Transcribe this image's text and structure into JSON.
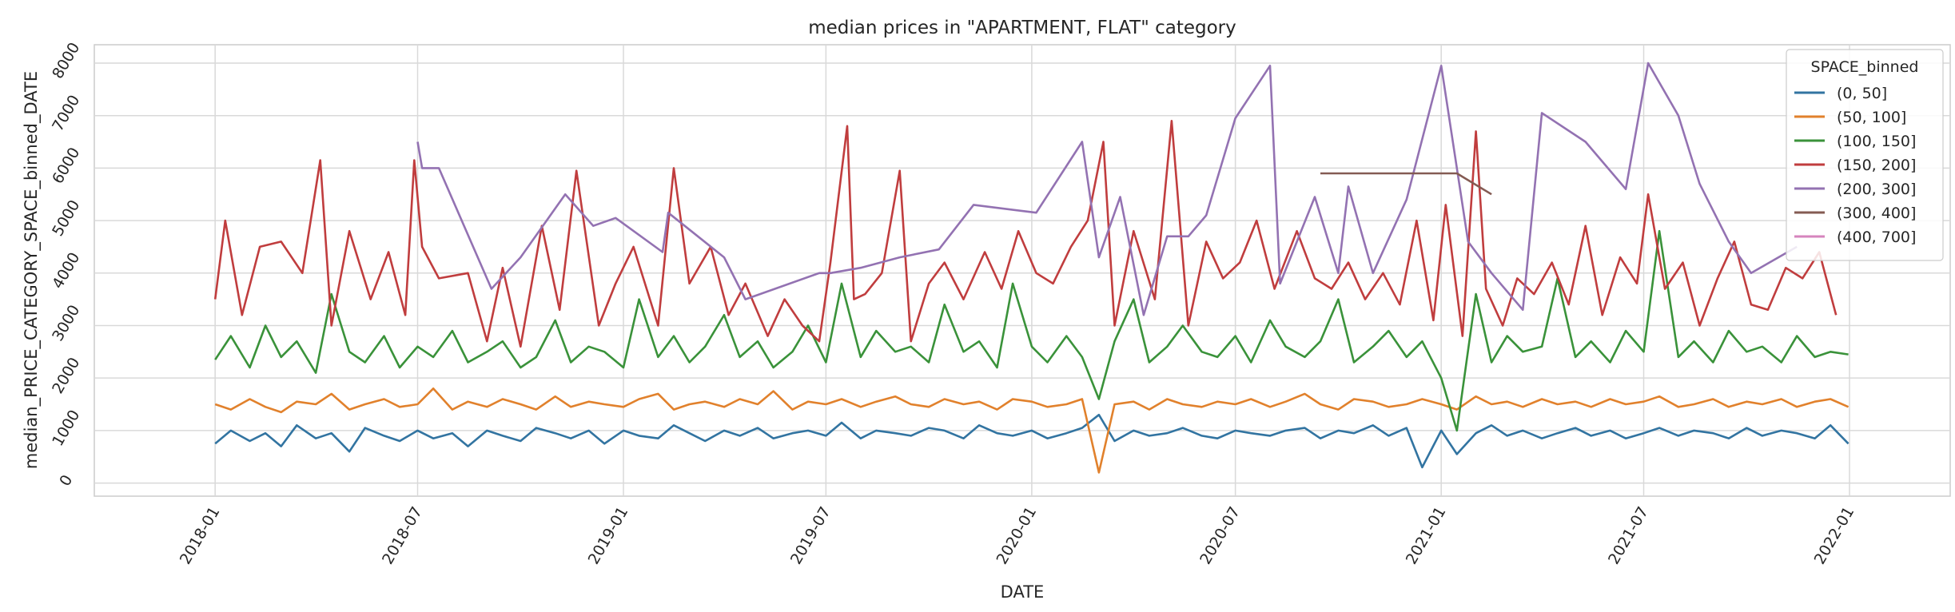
{
  "chart_data": {
    "type": "line",
    "title": "median prices in \"APARTMENT, FLAT\" category",
    "xlabel": "DATE",
    "ylabel": "median_PRICE_CATEGORY_SPACE_binned_DATE",
    "x_ticks": [
      "2018-01",
      "2018-07",
      "2019-01",
      "2019-07",
      "2020-01",
      "2020-07",
      "2021-01",
      "2021-07",
      "2022-01"
    ],
    "y_ticks": [
      "0",
      "1000",
      "2000",
      "3000",
      "4000",
      "5000",
      "6000",
      "7000",
      "8000"
    ],
    "xlim": [
      "2017-09-15",
      "2022-04-01"
    ],
    "ylim": [
      -250,
      8350
    ],
    "grid": true,
    "legend": {
      "title": "SPACE_binned",
      "placement": "top-right",
      "entries": [
        "(0, 50]",
        "(50, 100]",
        "(100, 150]",
        "(150, 200]",
        "(200, 300]",
        "(300, 400]",
        "(400, 700]"
      ]
    },
    "series": [
      {
        "name": "(0, 50]",
        "color": "#3274a1",
        "x": [
          "2018-01-01",
          "2018-01-15",
          "2018-02-01",
          "2018-02-15",
          "2018-03-01",
          "2018-03-15",
          "2018-04-01",
          "2018-04-15",
          "2018-05-01",
          "2018-05-15",
          "2018-06-01",
          "2018-06-15",
          "2018-07-01",
          "2018-07-15",
          "2018-08-01",
          "2018-08-15",
          "2018-09-01",
          "2018-09-15",
          "2018-10-01",
          "2018-10-15",
          "2018-11-01",
          "2018-11-15",
          "2018-12-01",
          "2018-12-15",
          "2019-01-01",
          "2019-01-15",
          "2019-02-01",
          "2019-02-15",
          "2019-03-01",
          "2019-03-15",
          "2019-04-01",
          "2019-04-15",
          "2019-05-01",
          "2019-05-15",
          "2019-06-01",
          "2019-06-15",
          "2019-07-01",
          "2019-07-15",
          "2019-08-01",
          "2019-08-15",
          "2019-09-01",
          "2019-09-15",
          "2019-10-01",
          "2019-10-15",
          "2019-11-01",
          "2019-11-15",
          "2019-12-01",
          "2019-12-15",
          "2020-01-01",
          "2020-01-15",
          "2020-02-01",
          "2020-02-15",
          "2020-03-01",
          "2020-03-15",
          "2020-04-01",
          "2020-04-15",
          "2020-05-01",
          "2020-05-15",
          "2020-06-01",
          "2020-06-15",
          "2020-07-01",
          "2020-07-15",
          "2020-08-01",
          "2020-08-15",
          "2020-09-01",
          "2020-09-15",
          "2020-10-01",
          "2020-10-15",
          "2020-11-01",
          "2020-11-15",
          "2020-12-01",
          "2020-12-15",
          "2021-01-01",
          "2021-01-15",
          "2021-02-01",
          "2021-02-15",
          "2021-03-01",
          "2021-03-15",
          "2021-04-01",
          "2021-04-15",
          "2021-05-01",
          "2021-05-15",
          "2021-06-01",
          "2021-06-15",
          "2021-07-01",
          "2021-07-15",
          "2021-08-01",
          "2021-08-15",
          "2021-09-01",
          "2021-09-15",
          "2021-10-01",
          "2021-10-15",
          "2021-11-01",
          "2021-11-15",
          "2021-12-01",
          "2021-12-15",
          "2021-12-31"
        ],
        "y": [
          750,
          1000,
          800,
          950,
          700,
          1100,
          850,
          950,
          600,
          1050,
          900,
          800,
          1000,
          850,
          950,
          700,
          1000,
          900,
          800,
          1050,
          950,
          850,
          1000,
          750,
          1000,
          900,
          850,
          1100,
          950,
          800,
          1000,
          900,
          1050,
          850,
          950,
          1000,
          900,
          1150,
          850,
          1000,
          950,
          900,
          1050,
          1000,
          850,
          1100,
          950,
          900,
          1000,
          850,
          950,
          1050,
          1300,
          800,
          1000,
          900,
          950,
          1050,
          900,
          850,
          1000,
          950,
          900,
          1000,
          1050,
          850,
          1000,
          950,
          1100,
          900,
          1050,
          300,
          1000,
          550,
          950,
          1100,
          900,
          1000,
          850,
          950,
          1050,
          900,
          1000,
          850,
          950,
          1050,
          900,
          1000,
          950,
          850,
          1050,
          900,
          1000,
          950,
          850,
          1100,
          750
        ]
      },
      {
        "name": "(50, 100]",
        "color": "#e1812c",
        "x": [
          "2018-01-01",
          "2018-01-15",
          "2018-02-01",
          "2018-02-15",
          "2018-03-01",
          "2018-03-15",
          "2018-04-01",
          "2018-04-15",
          "2018-05-01",
          "2018-05-15",
          "2018-06-01",
          "2018-06-15",
          "2018-07-01",
          "2018-07-15",
          "2018-08-01",
          "2018-08-15",
          "2018-09-01",
          "2018-09-15",
          "2018-10-01",
          "2018-10-15",
          "2018-11-01",
          "2018-11-15",
          "2018-12-01",
          "2018-12-15",
          "2019-01-01",
          "2019-01-15",
          "2019-02-01",
          "2019-02-15",
          "2019-03-01",
          "2019-03-15",
          "2019-04-01",
          "2019-04-15",
          "2019-05-01",
          "2019-05-15",
          "2019-06-01",
          "2019-06-15",
          "2019-07-01",
          "2019-07-15",
          "2019-08-01",
          "2019-08-15",
          "2019-09-01",
          "2019-09-15",
          "2019-10-01",
          "2019-10-15",
          "2019-11-01",
          "2019-11-15",
          "2019-12-01",
          "2019-12-15",
          "2020-01-01",
          "2020-01-15",
          "2020-02-01",
          "2020-02-15",
          "2020-03-01",
          "2020-03-15",
          "2020-04-01",
          "2020-04-15",
          "2020-05-01",
          "2020-05-15",
          "2020-06-01",
          "2020-06-15",
          "2020-07-01",
          "2020-07-15",
          "2020-08-01",
          "2020-08-15",
          "2020-09-01",
          "2020-09-15",
          "2020-10-01",
          "2020-10-15",
          "2020-11-01",
          "2020-11-15",
          "2020-12-01",
          "2020-12-15",
          "2021-01-01",
          "2021-01-15",
          "2021-02-01",
          "2021-02-15",
          "2021-03-01",
          "2021-03-15",
          "2021-04-01",
          "2021-04-15",
          "2021-05-01",
          "2021-05-15",
          "2021-06-01",
          "2021-06-15",
          "2021-07-01",
          "2021-07-15",
          "2021-08-01",
          "2021-08-15",
          "2021-09-01",
          "2021-09-15",
          "2021-10-01",
          "2021-10-15",
          "2021-11-01",
          "2021-11-15",
          "2021-12-01",
          "2021-12-15",
          "2021-12-31"
        ],
        "y": [
          1500,
          1400,
          1600,
          1450,
          1350,
          1550,
          1500,
          1700,
          1400,
          1500,
          1600,
          1450,
          1500,
          1800,
          1400,
          1550,
          1450,
          1600,
          1500,
          1400,
          1650,
          1450,
          1550,
          1500,
          1450,
          1600,
          1700,
          1400,
          1500,
          1550,
          1450,
          1600,
          1500,
          1750,
          1400,
          1550,
          1500,
          1600,
          1450,
          1550,
          1650,
          1500,
          1450,
          1600,
          1500,
          1550,
          1400,
          1600,
          1550,
          1450,
          1500,
          1600,
          200,
          1500,
          1550,
          1400,
          1600,
          1500,
          1450,
          1550,
          1500,
          1600,
          1450,
          1550,
          1700,
          1500,
          1400,
          1600,
          1550,
          1450,
          1500,
          1600,
          1500,
          1400,
          1650,
          1500,
          1550,
          1450,
          1600,
          1500,
          1550,
          1450,
          1600,
          1500,
          1550,
          1650,
          1450,
          1500,
          1600,
          1450,
          1550,
          1500,
          1600,
          1450,
          1550,
          1600,
          1450
        ]
      },
      {
        "name": "(100, 150]",
        "color": "#3a923a",
        "x": [
          "2018-01-01",
          "2018-01-15",
          "2018-02-01",
          "2018-02-15",
          "2018-03-01",
          "2018-03-15",
          "2018-04-01",
          "2018-04-15",
          "2018-05-01",
          "2018-05-15",
          "2018-06-01",
          "2018-06-15",
          "2018-07-01",
          "2018-07-15",
          "2018-08-01",
          "2018-08-15",
          "2018-09-01",
          "2018-09-15",
          "2018-10-01",
          "2018-10-15",
          "2018-11-01",
          "2018-11-15",
          "2018-12-01",
          "2018-12-15",
          "2019-01-01",
          "2019-01-15",
          "2019-02-01",
          "2019-02-15",
          "2019-03-01",
          "2019-03-15",
          "2019-04-01",
          "2019-04-15",
          "2019-05-01",
          "2019-05-15",
          "2019-06-01",
          "2019-06-15",
          "2019-07-01",
          "2019-07-15",
          "2019-08-01",
          "2019-08-15",
          "2019-09-01",
          "2019-09-15",
          "2019-10-01",
          "2019-10-15",
          "2019-11-01",
          "2019-11-15",
          "2019-12-01",
          "2019-12-15",
          "2020-01-01",
          "2020-01-15",
          "2020-02-01",
          "2020-02-15",
          "2020-03-01",
          "2020-03-15",
          "2020-04-01",
          "2020-04-15",
          "2020-05-01",
          "2020-05-15",
          "2020-06-01",
          "2020-06-15",
          "2020-07-01",
          "2020-07-15",
          "2020-08-01",
          "2020-08-15",
          "2020-09-01",
          "2020-09-15",
          "2020-10-01",
          "2020-10-15",
          "2020-11-01",
          "2020-11-15",
          "2020-12-01",
          "2020-12-15",
          "2021-01-01",
          "2021-01-15",
          "2021-02-01",
          "2021-02-15",
          "2021-03-01",
          "2021-03-15",
          "2021-04-01",
          "2021-04-15",
          "2021-05-01",
          "2021-05-15",
          "2021-06-01",
          "2021-06-15",
          "2021-07-01",
          "2021-07-15",
          "2021-08-01",
          "2021-08-15",
          "2021-09-01",
          "2021-09-15",
          "2021-10-01",
          "2021-10-15",
          "2021-11-01",
          "2021-11-15",
          "2021-12-01",
          "2021-12-15",
          "2021-12-31"
        ],
        "y": [
          2350,
          2800,
          2200,
          3000,
          2400,
          2700,
          2100,
          3600,
          2500,
          2300,
          2800,
          2200,
          2600,
          2400,
          2900,
          2300,
          2500,
          2700,
          2200,
          2400,
          3100,
          2300,
          2600,
          2500,
          2200,
          3500,
          2400,
          2800,
          2300,
          2600,
          3200,
          2400,
          2700,
          2200,
          2500,
          3000,
          2300,
          3800,
          2400,
          2900,
          2500,
          2600,
          2300,
          3400,
          2500,
          2700,
          2200,
          3800,
          2600,
          2300,
          2800,
          2400,
          1600,
          2700,
          3500,
          2300,
          2600,
          3000,
          2500,
          2400,
          2800,
          2300,
          3100,
          2600,
          2400,
          2700,
          3500,
          2300,
          2600,
          2900,
          2400,
          2700,
          2000,
          1000,
          3600,
          2300,
          2800,
          2500,
          2600,
          3900,
          2400,
          2700,
          2300,
          2900,
          2500,
          4800,
          2400,
          2700,
          2300,
          2900,
          2500,
          2600,
          2300,
          2800,
          2400,
          2500,
          2450
        ]
      },
      {
        "name": "(150, 200]",
        "color": "#c03d3e",
        "x": [
          "2018-01-01",
          "2018-01-10",
          "2018-01-25",
          "2018-02-10",
          "2018-03-01",
          "2018-03-20",
          "2018-04-05",
          "2018-04-15",
          "2018-05-01",
          "2018-05-20",
          "2018-06-05",
          "2018-06-20",
          "2018-06-28",
          "2018-07-05",
          "2018-07-20",
          "2018-08-15",
          "2018-09-01",
          "2018-09-15",
          "2018-10-01",
          "2018-10-20",
          "2018-11-05",
          "2018-11-20",
          "2018-12-10",
          "2018-12-25",
          "2019-01-10",
          "2019-02-01",
          "2019-02-15",
          "2019-03-01",
          "2019-03-20",
          "2019-04-05",
          "2019-04-20",
          "2019-05-10",
          "2019-05-25",
          "2019-06-10",
          "2019-06-25",
          "2019-07-05",
          "2019-07-20",
          "2019-07-26",
          "2019-08-05",
          "2019-08-20",
          "2019-09-05",
          "2019-09-15",
          "2019-10-01",
          "2019-10-15",
          "2019-11-01",
          "2019-11-20",
          "2019-12-05",
          "2019-12-20",
          "2020-01-05",
          "2020-01-20",
          "2020-02-05",
          "2020-02-20",
          "2020-03-05",
          "2020-03-15",
          "2020-04-01",
          "2020-04-20",
          "2020-05-05",
          "2020-05-20",
          "2020-06-05",
          "2020-06-20",
          "2020-07-05",
          "2020-07-20",
          "2020-08-05",
          "2020-08-25",
          "2020-09-10",
          "2020-09-25",
          "2020-10-10",
          "2020-10-25",
          "2020-11-10",
          "2020-11-25",
          "2020-12-10",
          "2020-12-25",
          "2021-01-05",
          "2021-01-20",
          "2021-02-01",
          "2021-02-10",
          "2021-02-25",
          "2021-03-10",
          "2021-03-25",
          "2021-04-10",
          "2021-04-25",
          "2021-05-10",
          "2021-05-25",
          "2021-06-10",
          "2021-06-25",
          "2021-07-05",
          "2021-07-20",
          "2021-08-05",
          "2021-08-20",
          "2021-09-05",
          "2021-09-20",
          "2021-10-05",
          "2021-10-20",
          "2021-11-05",
          "2021-11-20",
          "2021-12-05",
          "2021-12-20"
        ],
        "y": [
          3500,
          5000,
          3200,
          4500,
          4600,
          4000,
          6150,
          3000,
          4800,
          3500,
          4400,
          3200,
          6150,
          4500,
          3900,
          4000,
          2700,
          4100,
          2600,
          4900,
          3300,
          5950,
          3000,
          3800,
          4500,
          3000,
          6000,
          3800,
          4500,
          3200,
          3800,
          2800,
          3500,
          3000,
          2700,
          4200,
          6800,
          3500,
          3600,
          4000,
          5950,
          2700,
          3800,
          4200,
          3500,
          4400,
          3700,
          4800,
          4000,
          3800,
          4500,
          5000,
          6500,
          3000,
          4800,
          3500,
          6900,
          3000,
          4600,
          3900,
          4200,
          5000,
          3700,
          4800,
          3900,
          3700,
          4200,
          3500,
          4000,
          3400,
          5000,
          3100,
          5300,
          2800,
          6700,
          3700,
          3000,
          3900,
          3600,
          4200,
          3400,
          4900,
          3200,
          4300,
          3800,
          5500,
          3700,
          4200,
          3000,
          3900,
          4600,
          3400,
          3300,
          4100,
          3900,
          4400,
          3200
        ]
      },
      {
        "name": "(200, 300]",
        "color": "#9372b2",
        "x": [
          "2018-07-01",
          "2018-07-05",
          "2018-07-20",
          "2018-09-05",
          "2018-10-01",
          "2018-11-10",
          "2018-12-05",
          "2018-12-25",
          "2019-02-05",
          "2019-02-10",
          "2019-04-01",
          "2019-04-20",
          "2019-06-25",
          "2019-07-05",
          "2019-08-01",
          "2019-09-05",
          "2019-10-10",
          "2019-11-10",
          "2020-01-05",
          "2020-02-15",
          "2020-03-01",
          "2020-03-20",
          "2020-04-10",
          "2020-05-01",
          "2020-05-20",
          "2020-06-05",
          "2020-07-01",
          "2020-08-01",
          "2020-08-10",
          "2020-09-10",
          "2020-10-01",
          "2020-10-10",
          "2020-11-01",
          "2020-12-01",
          "2021-01-01",
          "2021-01-25",
          "2021-02-15",
          "2021-03-15",
          "2021-04-01",
          "2021-05-10",
          "2021-06-15",
          "2021-07-05",
          "2021-08-01",
          "2021-08-20",
          "2021-09-15",
          "2021-10-05",
          "2021-11-15"
        ],
        "y": [
          6500,
          6000,
          6000,
          3700,
          4300,
          5500,
          4900,
          5050,
          4400,
          5150,
          4300,
          3500,
          4000,
          4000,
          4100,
          4300,
          4450,
          5300,
          5150,
          6500,
          4300,
          5450,
          3200,
          4700,
          4700,
          5100,
          6950,
          7950,
          3800,
          5450,
          4000,
          5650,
          4000,
          5400,
          7950,
          4600,
          4000,
          3300,
          7050,
          6500,
          5600,
          8000,
          7000,
          5700,
          4600,
          4000,
          4500
        ]
      },
      {
        "name": "(300, 400]",
        "color": "#845b53",
        "x": [
          "2020-09-15",
          "2020-12-01",
          "2021-01-15",
          "2021-02-15"
        ],
        "y": [
          5900,
          5900,
          5900,
          5500
        ]
      },
      {
        "name": "(400, 700]",
        "color": "#d684bd",
        "x": [],
        "y": []
      }
    ]
  }
}
